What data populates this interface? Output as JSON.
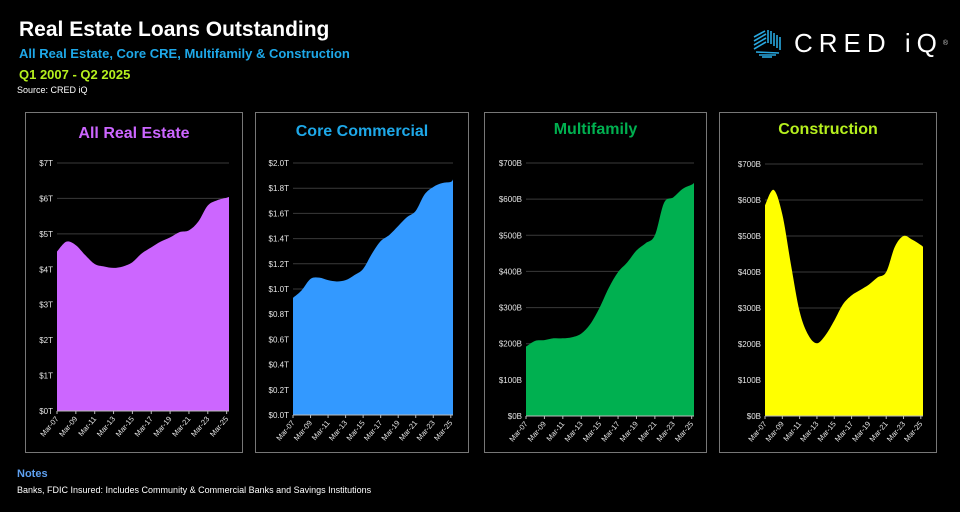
{
  "header": {
    "title": "Real Estate Loans Outstanding",
    "subtitle": "All Real Estate, Core CRE, Multifamily & Construction",
    "period": "Q1 2007 - Q2 2025",
    "source": "Source:  CRED iQ"
  },
  "logo": {
    "text": "CRED iQ",
    "icon": "cube-stripes-icon",
    "color": "#29a8e0"
  },
  "notes": {
    "label": "Notes",
    "text": "Banks, FDIC Insured:  Includes Community & Commercial Banks and Savings Institutions"
  },
  "chart_data": [
    {
      "type": "area",
      "title": "All Real Estate",
      "color": "#cc66ff",
      "ylim": [
        0,
        7
      ],
      "yticks": [
        0,
        1,
        2,
        3,
        4,
        5,
        6,
        7
      ],
      "ytick_labels": [
        "$0T",
        "$1T",
        "$2T",
        "$3T",
        "$4T",
        "$5T",
        "$6T",
        "$7T"
      ],
      "x": [
        2007,
        2008,
        2009,
        2010,
        2011,
        2012,
        2013,
        2014,
        2015,
        2016,
        2017,
        2018,
        2019,
        2020,
        2021,
        2022,
        2023,
        2024,
        2025,
        2025.25
      ],
      "values": [
        4.5,
        4.78,
        4.68,
        4.4,
        4.15,
        4.08,
        4.04,
        4.08,
        4.2,
        4.45,
        4.62,
        4.78,
        4.9,
        5.05,
        5.1,
        5.35,
        5.8,
        5.95,
        6.02,
        6.04
      ],
      "xtick_labels": [
        "Mar-07",
        "Mar-09",
        "Mar-11",
        "Mar-13",
        "Mar-15",
        "Mar-17",
        "Mar-19",
        "Mar-21",
        "Mar-23",
        "Mar-25"
      ],
      "grid": true
    },
    {
      "type": "area",
      "title": "Core Commercial",
      "color": "#3399ff",
      "ylim": [
        0,
        2
      ],
      "yticks": [
        0,
        0.2,
        0.4,
        0.6,
        0.8,
        1.0,
        1.2,
        1.4,
        1.6,
        1.8,
        2.0
      ],
      "ytick_labels": [
        "$0.0T",
        "$0.2T",
        "$0.4T",
        "$0.6T",
        "$0.8T",
        "$1.0T",
        "$1.2T",
        "$1.4T",
        "$1.6T",
        "$1.8T",
        "$2.0T"
      ],
      "x": [
        2007,
        2008,
        2009,
        2010,
        2011,
        2012,
        2013,
        2014,
        2015,
        2016,
        2017,
        2018,
        2019,
        2020,
        2021,
        2022,
        2023,
        2024,
        2025,
        2025.25
      ],
      "values": [
        0.93,
        0.99,
        1.08,
        1.09,
        1.07,
        1.06,
        1.07,
        1.11,
        1.16,
        1.28,
        1.38,
        1.43,
        1.5,
        1.57,
        1.62,
        1.75,
        1.81,
        1.84,
        1.85,
        1.87
      ],
      "xtick_labels": [
        "Mar-07",
        "Mar-09",
        "Mar-11",
        "Mar-13",
        "Mar-15",
        "Mar-17",
        "Mar-19",
        "Mar-21",
        "Mar-23",
        "Mar-25"
      ],
      "grid": true
    },
    {
      "type": "area",
      "title": "Multifamily",
      "color": "#00b050",
      "ylim": [
        0,
        700
      ],
      "yticks": [
        0,
        100,
        200,
        300,
        400,
        500,
        600,
        700
      ],
      "ytick_labels": [
        "$0B",
        "$100B",
        "$200B",
        "$300B",
        "$400B",
        "$500B",
        "$600B",
        "$700B"
      ],
      "x": [
        2007,
        2008,
        2009,
        2010,
        2011,
        2012,
        2013,
        2014,
        2015,
        2016,
        2017,
        2018,
        2019,
        2020,
        2021,
        2022,
        2023,
        2024,
        2025,
        2025.25
      ],
      "values": [
        192,
        208,
        210,
        215,
        215,
        218,
        228,
        255,
        300,
        355,
        398,
        425,
        458,
        478,
        500,
        590,
        605,
        628,
        640,
        645
      ],
      "xtick_labels": [
        "Mar-07",
        "Mar-09",
        "Mar-11",
        "Mar-13",
        "Mar-15",
        "Mar-17",
        "Mar-19",
        "Mar-21",
        "Mar-23",
        "Mar-25"
      ],
      "grid": true
    },
    {
      "type": "area",
      "title": "Construction",
      "color": "#ffff00",
      "ylim": [
        0,
        700
      ],
      "yticks": [
        0,
        100,
        200,
        300,
        400,
        500,
        600,
        700
      ],
      "ytick_labels": [
        "$0B",
        "$100B",
        "$200B",
        "$300B",
        "$400B",
        "$500B",
        "$600B",
        "$700B"
      ],
      "x": [
        2007,
        2008,
        2009,
        2010,
        2011,
        2012,
        2013,
        2014,
        2015,
        2016,
        2017,
        2018,
        2019,
        2020,
        2021,
        2022,
        2023,
        2024,
        2025,
        2025.25
      ],
      "values": [
        585,
        628,
        560,
        420,
        290,
        225,
        202,
        225,
        265,
        310,
        335,
        350,
        365,
        385,
        400,
        470,
        500,
        490,
        475,
        470
      ],
      "xtick_labels": [
        "Mar-07",
        "Mar-09",
        "Mar-11",
        "Mar-13",
        "Mar-15",
        "Mar-17",
        "Mar-19",
        "Mar-21",
        "Mar-23",
        "Mar-25"
      ],
      "grid": true
    }
  ]
}
